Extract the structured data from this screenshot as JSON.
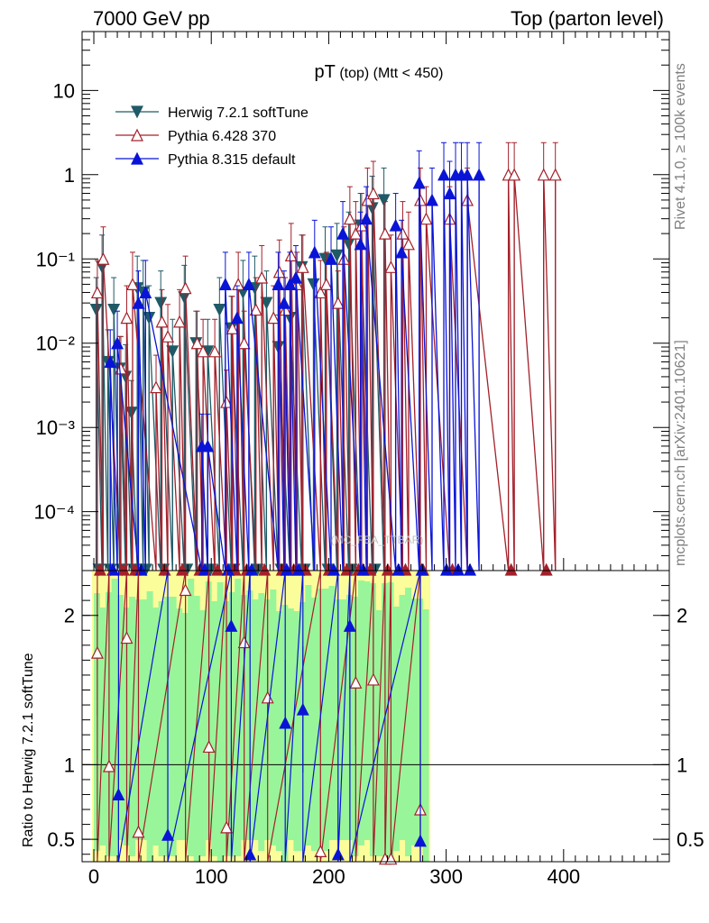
{
  "header": {
    "left": "7000 GeV pp",
    "right": "Top (parton level)"
  },
  "side_labels": {
    "top": "Rivet 4.1.0, ≥ 100k events",
    "bottom": "mcplots.cern.ch [arXiv:2401.10621]"
  },
  "watermark": "(MC_FBA_TTBAR)",
  "colors": {
    "herwig": "#1f5a66",
    "pythia6": "#a3202a",
    "pythia8": "#0a14d6",
    "band_green": "#99f599",
    "band_yellow": "#fbfd9a"
  },
  "chart_data": [
    {
      "type": "line",
      "title_main": "pT",
      "title_sub": "(top) (Mtt < 450)",
      "xlabel": "",
      "ylabel": "",
      "yscale": "log",
      "xlim": [
        -10,
        490
      ],
      "ylim": [
        2e-05,
        50
      ],
      "yticks": [
        {
          "v": 10,
          "label": "10"
        },
        {
          "v": 1,
          "label": "1"
        },
        {
          "v": 0.1,
          "label": "10⁻¹"
        },
        {
          "v": 0.01,
          "label": "10⁻²"
        },
        {
          "v": 0.001,
          "label": "10⁻³"
        },
        {
          "v": 0.0001,
          "label": "10⁻⁴"
        }
      ],
      "legend": [
        "Herwig 7.2.1 softTune",
        "Pythia 6.428 370",
        "Pythia 8.315 default"
      ],
      "series": [
        {
          "name": "Herwig 7.2.1 softTune",
          "marker": "triangle-down",
          "x": [
            2,
            7,
            12,
            17,
            22,
            27,
            32,
            37,
            42,
            47,
            57,
            67,
            77,
            87,
            97,
            107,
            117,
            127,
            137,
            147,
            157,
            167,
            177,
            187,
            197,
            207,
            217,
            227,
            237,
            247
          ],
          "y": [
            0.025,
            0.08,
            0.006,
            0.025,
            0.005,
            0.004,
            0.0015,
            0.045,
            0.04,
            0.02,
            0.03,
            0.008,
            0.035,
            0.01,
            0.008,
            0.025,
            0.015,
            0.04,
            0.045,
            0.03,
            0.009,
            0.02,
            0.08,
            0.05,
            0.1,
            0.11,
            0.15,
            0.25,
            0.4,
            0.5
          ]
        },
        {
          "name": "Pythia 6.428 370",
          "marker": "triangle-open",
          "x": [
            3,
            8,
            23,
            28,
            33,
            53,
            58,
            63,
            73,
            78,
            88,
            93,
            103,
            113,
            118,
            123,
            128,
            138,
            143,
            153,
            158,
            163,
            168,
            173,
            178,
            193,
            198,
            208,
            213,
            218,
            223,
            228,
            233,
            238,
            248,
            253,
            263,
            268,
            278,
            283,
            303,
            318,
            353,
            358,
            383,
            393
          ],
          "y": [
            0.04,
            0.1,
            0.005,
            0.02,
            0.05,
            0.003,
            0.018,
            0.012,
            0.018,
            0.045,
            0.01,
            0.008,
            0.008,
            0.002,
            0.015,
            0.05,
            0.01,
            0.025,
            0.06,
            0.02,
            0.07,
            0.025,
            0.11,
            0.05,
            0.08,
            0.04,
            0.05,
            0.03,
            0.1,
            0.3,
            0.2,
            0.25,
            0.5,
            0.6,
            0.2,
            0.08,
            0.2,
            0.15,
            0.5,
            0.3,
            0.3,
            0.5,
            1.0,
            1.0,
            1.0,
            1.0
          ]
        },
        {
          "name": "Pythia 8.315 default",
          "marker": "triangle-up",
          "x": [
            14,
            20,
            38,
            44,
            92,
            97,
            112,
            122,
            132,
            157,
            162,
            167,
            172,
            188,
            202,
            212,
            227,
            232,
            257,
            262,
            277,
            288,
            298,
            303,
            308,
            313,
            318,
            328
          ],
          "y": [
            0.006,
            0.01,
            0.03,
            0.04,
            0.0006,
            0.0006,
            0.05,
            0.02,
            0.05,
            0.05,
            0.03,
            0.05,
            0.06,
            0.12,
            0.1,
            0.2,
            0.15,
            0.3,
            0.25,
            0.12,
            0.8,
            0.5,
            1.0,
            0.6,
            1.0,
            1.0,
            1.0,
            1.0
          ]
        }
      ]
    },
    {
      "type": "line",
      "ylabel": "Ratio to Herwig 7.2.1 softTune",
      "xlabel": "",
      "xlim": [
        -10,
        490
      ],
      "ylim": [
        0.35,
        2.3
      ],
      "xticks": [
        0,
        100,
        200,
        300,
        400
      ],
      "yticks": [
        0.5,
        1,
        2
      ],
      "reference_line": 1,
      "band_range": [
        0,
        285
      ],
      "series": [
        {
          "name": "Pythia 6.428 370",
          "marker": "triangle-open",
          "x": [
            3,
            13,
            28,
            38,
            78,
            98,
            113,
            128,
            148,
            193,
            223,
            238,
            248,
            253,
            278
          ],
          "y": [
            1.75,
            0.99,
            1.85,
            0.55,
            2.17,
            1.12,
            0.58,
            1.82,
            1.45,
            0.42,
            1.55,
            1.57,
            0.37,
            0.37,
            0.7
          ]
        },
        {
          "name": "Pythia 8.315 default",
          "marker": "triangle-up",
          "x": [
            21,
            63,
            117,
            133,
            163,
            178,
            208,
            218,
            278
          ],
          "y": [
            0.8,
            0.53,
            1.93,
            0.4,
            1.28,
            1.37,
            0.4,
            1.93,
            0.49
          ]
        }
      ]
    }
  ]
}
